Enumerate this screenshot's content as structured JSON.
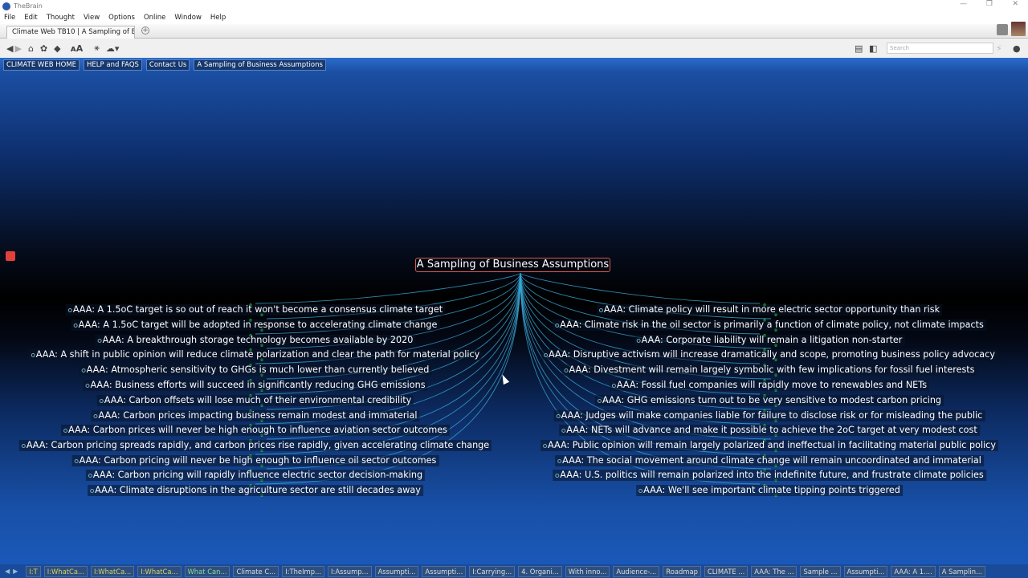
{
  "app": {
    "title": "TheBrain"
  },
  "menu": [
    "File",
    "Edit",
    "Thought",
    "View",
    "Options",
    "Online",
    "Window",
    "Help"
  ],
  "tab": {
    "label": "Climate Web TB10 | A Sampling of B..."
  },
  "search": {
    "placeholder": "Search"
  },
  "pins": [
    "CLIMATE WEB HOME",
    "HELP and FAQS",
    "Contact Us",
    "A Sampling of Business Assumptions"
  ],
  "central": "A Sampling of Business Assumptions",
  "colors": {
    "link": "#3aa8d8",
    "gate": "#22cc44",
    "central_border": "#d35a5a"
  },
  "left": [
    "AAA: A 1.5oC target is so out of reach it won't become a consensus climate target",
    "AAA: A 1.5oC target will be adopted in response to accelerating climate change",
    "AAA: A breakthrough storage technology becomes available by 2020",
    "AAA: A shift in public opinion will reduce climate polarization and clear the path for material policy",
    "AAA: Atmospheric sensitivity to GHGs is much lower than currently believed",
    "AAA: Business efforts will succeed in significantly reducing GHG emissions",
    "AAA: Carbon offsets will lose much of their environmental credibility",
    "AAA: Carbon prices impacting business remain modest and immaterial",
    "AAA: Carbon prices will never be high enough to influence aviation sector outcomes",
    "AAA: Carbon pricing spreads rapidly, and carbon prices rise rapidly, given accelerating climate change",
    "AAA: Carbon pricing will never be high enough to influence oil sector outcomes",
    "AAA: Carbon pricing will rapidly influence electric sector decision-making",
    "AAA: Climate disruptions in the agriculture sector are still decades away"
  ],
  "right": [
    "AAA: Climate policy will result in more electric sector opportunity than risk",
    "AAA: Climate risk in the oil sector is primarily a function of climate policy, not climate impacts",
    "AAA: Corporate liability will remain a litigation non-starter",
    "AAA: Disruptive activism will increase dramatically and scope, promoting business policy advocacy",
    "AAA: Divestment will remain largely symbolic with few implications for fossil fuel interests",
    "AAA: Fossil fuel companies will rapidly move to renewables and NETs",
    "AAA: GHG emissions turn out to be very sensitive to modest carbon pricing",
    "AAA: Judges will make companies liable for failure to disclose risk or for misleading the public",
    "AAA: NETs will advance and make it possible to achieve the 2oC target at very modest cost",
    "AAA: Public opinion will remain largely polarized and ineffectual in facilitating material public policy",
    "AAA: The social movement around climate change will remain uncoordinated and immaterial",
    "AAA: U.S. politics will remain polarized into the indefinite future, and frustrate climate policies",
    "AAA: We'll see important climate tipping points triggered"
  ],
  "history": [
    {
      "label": "I:T",
      "style": "y"
    },
    {
      "label": "I:WhatCa...",
      "style": "y"
    },
    {
      "label": "I:WhatCa...",
      "style": "y"
    },
    {
      "label": "I:WhatCa...",
      "style": "y"
    },
    {
      "label": "What Can...",
      "style": "g"
    },
    {
      "label": "Climate C...",
      "style": ""
    },
    {
      "label": "I:TheImp...",
      "style": ""
    },
    {
      "label": "I:Assump...",
      "style": ""
    },
    {
      "label": "Assumpti...",
      "style": ""
    },
    {
      "label": "Assumpti...",
      "style": ""
    },
    {
      "label": "I:Carrying...",
      "style": ""
    },
    {
      "label": "4. Organi...",
      "style": ""
    },
    {
      "label": "With inno...",
      "style": ""
    },
    {
      "label": "Audience-...",
      "style": ""
    },
    {
      "label": "Roadmap",
      "style": ""
    },
    {
      "label": "CLIMATE ...",
      "style": ""
    },
    {
      "label": "AAA: The ...",
      "style": ""
    },
    {
      "label": "Sample ...",
      "style": ""
    },
    {
      "label": "Assumpti...",
      "style": ""
    },
    {
      "label": "AAA: A 1....",
      "style": ""
    },
    {
      "label": "A Samplin...",
      "style": ""
    }
  ]
}
